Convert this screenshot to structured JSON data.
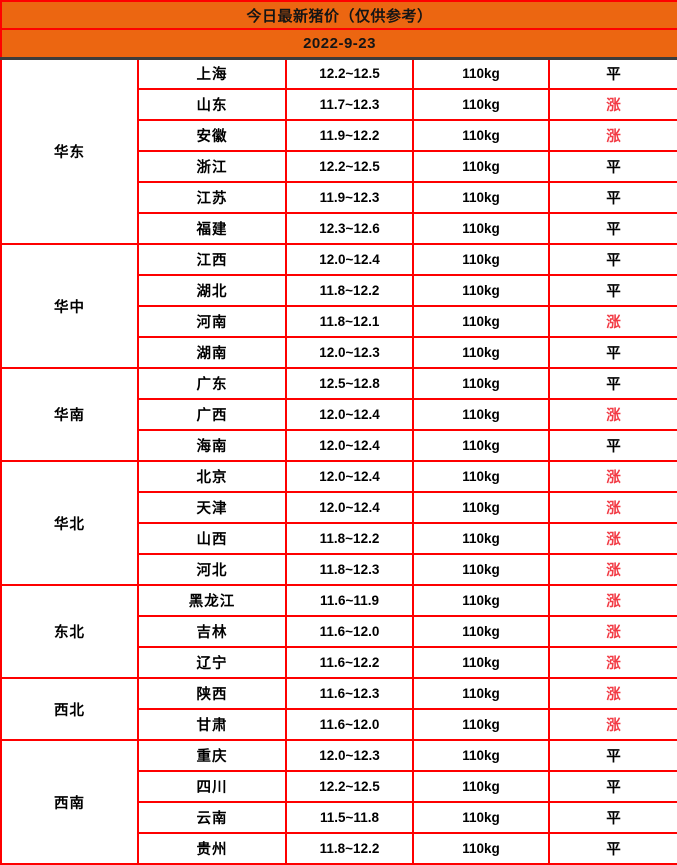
{
  "header": {
    "title": "今日最新猪价（仅供参考）",
    "date": "2022-9-23"
  },
  "colors": {
    "header_bg": "#EC6611",
    "border": "#FE0000",
    "rise_text": "#F23B45",
    "flat_text": "#000000",
    "date_divider": "#3C3C3C"
  },
  "table": {
    "groups": [
      {
        "region": "华东",
        "rows": [
          {
            "province": "上海",
            "price": "12.2~12.5",
            "weight": "110kg",
            "status": "平",
            "trend": "flat"
          },
          {
            "province": "山东",
            "price": "11.7~12.3",
            "weight": "110kg",
            "status": "涨",
            "trend": "up"
          },
          {
            "province": "安徽",
            "price": "11.9~12.2",
            "weight": "110kg",
            "status": "涨",
            "trend": "up"
          },
          {
            "province": "浙江",
            "price": "12.2~12.5",
            "weight": "110kg",
            "status": "平",
            "trend": "flat"
          },
          {
            "province": "江苏",
            "price": "11.9~12.3",
            "weight": "110kg",
            "status": "平",
            "trend": "flat"
          },
          {
            "province": "福建",
            "price": "12.3~12.6",
            "weight": "110kg",
            "status": "平",
            "trend": "flat"
          }
        ]
      },
      {
        "region": "华中",
        "rows": [
          {
            "province": "江西",
            "price": "12.0~12.4",
            "weight": "110kg",
            "status": "平",
            "trend": "flat"
          },
          {
            "province": "湖北",
            "price": "11.8~12.2",
            "weight": "110kg",
            "status": "平",
            "trend": "flat"
          },
          {
            "province": "河南",
            "price": "11.8~12.1",
            "weight": "110kg",
            "status": "涨",
            "trend": "up"
          },
          {
            "province": "湖南",
            "price": "12.0~12.3",
            "weight": "110kg",
            "status": "平",
            "trend": "flat"
          }
        ]
      },
      {
        "region": "华南",
        "rows": [
          {
            "province": "广东",
            "price": "12.5~12.8",
            "weight": "110kg",
            "status": "平",
            "trend": "flat"
          },
          {
            "province": "广西",
            "price": "12.0~12.4",
            "weight": "110kg",
            "status": "涨",
            "trend": "up"
          },
          {
            "province": "海南",
            "price": "12.0~12.4",
            "weight": "110kg",
            "status": "平",
            "trend": "flat"
          }
        ]
      },
      {
        "region": "华北",
        "rows": [
          {
            "province": "北京",
            "price": "12.0~12.4",
            "weight": "110kg",
            "status": "涨",
            "trend": "up"
          },
          {
            "province": "天津",
            "price": "12.0~12.4",
            "weight": "110kg",
            "status": "涨",
            "trend": "up"
          },
          {
            "province": "山西",
            "price": "11.8~12.2",
            "weight": "110kg",
            "status": "涨",
            "trend": "up"
          },
          {
            "province": "河北",
            "price": "11.8~12.3",
            "weight": "110kg",
            "status": "涨",
            "trend": "up"
          }
        ]
      },
      {
        "region": "东北",
        "rows": [
          {
            "province": "黑龙江",
            "price": "11.6~11.9",
            "weight": "110kg",
            "status": "涨",
            "trend": "up"
          },
          {
            "province": "吉林",
            "price": "11.6~12.0",
            "weight": "110kg",
            "status": "涨",
            "trend": "up"
          },
          {
            "province": "辽宁",
            "price": "11.6~12.2",
            "weight": "110kg",
            "status": "涨",
            "trend": "up"
          }
        ]
      },
      {
        "region": "西北",
        "rows": [
          {
            "province": "陕西",
            "price": "11.6~12.3",
            "weight": "110kg",
            "status": "涨",
            "trend": "up"
          },
          {
            "province": "甘肃",
            "price": "11.6~12.0",
            "weight": "110kg",
            "status": "涨",
            "trend": "up"
          }
        ]
      },
      {
        "region": "西南",
        "rows": [
          {
            "province": "重庆",
            "price": "12.0~12.3",
            "weight": "110kg",
            "status": "平",
            "trend": "flat"
          },
          {
            "province": "四川",
            "price": "12.2~12.5",
            "weight": "110kg",
            "status": "平",
            "trend": "flat"
          },
          {
            "province": "云南",
            "price": "11.5~11.8",
            "weight": "110kg",
            "status": "平",
            "trend": "flat"
          },
          {
            "province": "贵州",
            "price": "11.8~12.2",
            "weight": "110kg",
            "status": "平",
            "trend": "flat"
          }
        ]
      }
    ]
  }
}
